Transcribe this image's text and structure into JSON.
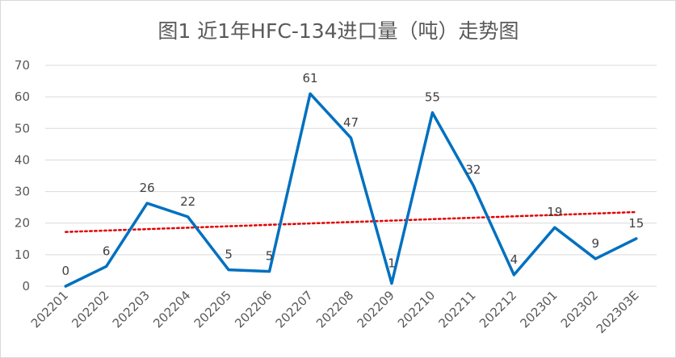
{
  "chart_data": {
    "type": "line",
    "title": "图1  近1年HFC-134进口量（吨）走势图",
    "xlabel": "",
    "ylabel": "",
    "categories": [
      "202201",
      "202202",
      "202203",
      "202204",
      "202205",
      "202206",
      "202207",
      "202208",
      "202209",
      "202210",
      "202211",
      "202212",
      "202301",
      "202302",
      "202303E"
    ],
    "series": [
      {
        "values": [
          0,
          6,
          26,
          22,
          5,
          5,
          61,
          47,
          1,
          55,
          32,
          4,
          19,
          9,
          15
        ],
        "data_labels": [
          "0",
          "6",
          "26",
          "22",
          "5",
          "5",
          "61",
          "47",
          "1",
          "55",
          "32",
          "4",
          "19",
          "9",
          "15"
        ],
        "plot_values": [
          0,
          6.3,
          26.3,
          22,
          5.2,
          4.7,
          61,
          47,
          0.9,
          55,
          32,
          3.6,
          18.6,
          8.7,
          15.1
        ],
        "color": "#0070c0"
      }
    ],
    "trendline": {
      "type": "linear",
      "start": 17.2,
      "end": 23.5,
      "color": "#e30000",
      "style": "dotted"
    },
    "ylim": [
      0,
      70
    ],
    "yticks": [
      0,
      10,
      20,
      30,
      40,
      50,
      60,
      70
    ],
    "grid": true,
    "legend": "none"
  }
}
